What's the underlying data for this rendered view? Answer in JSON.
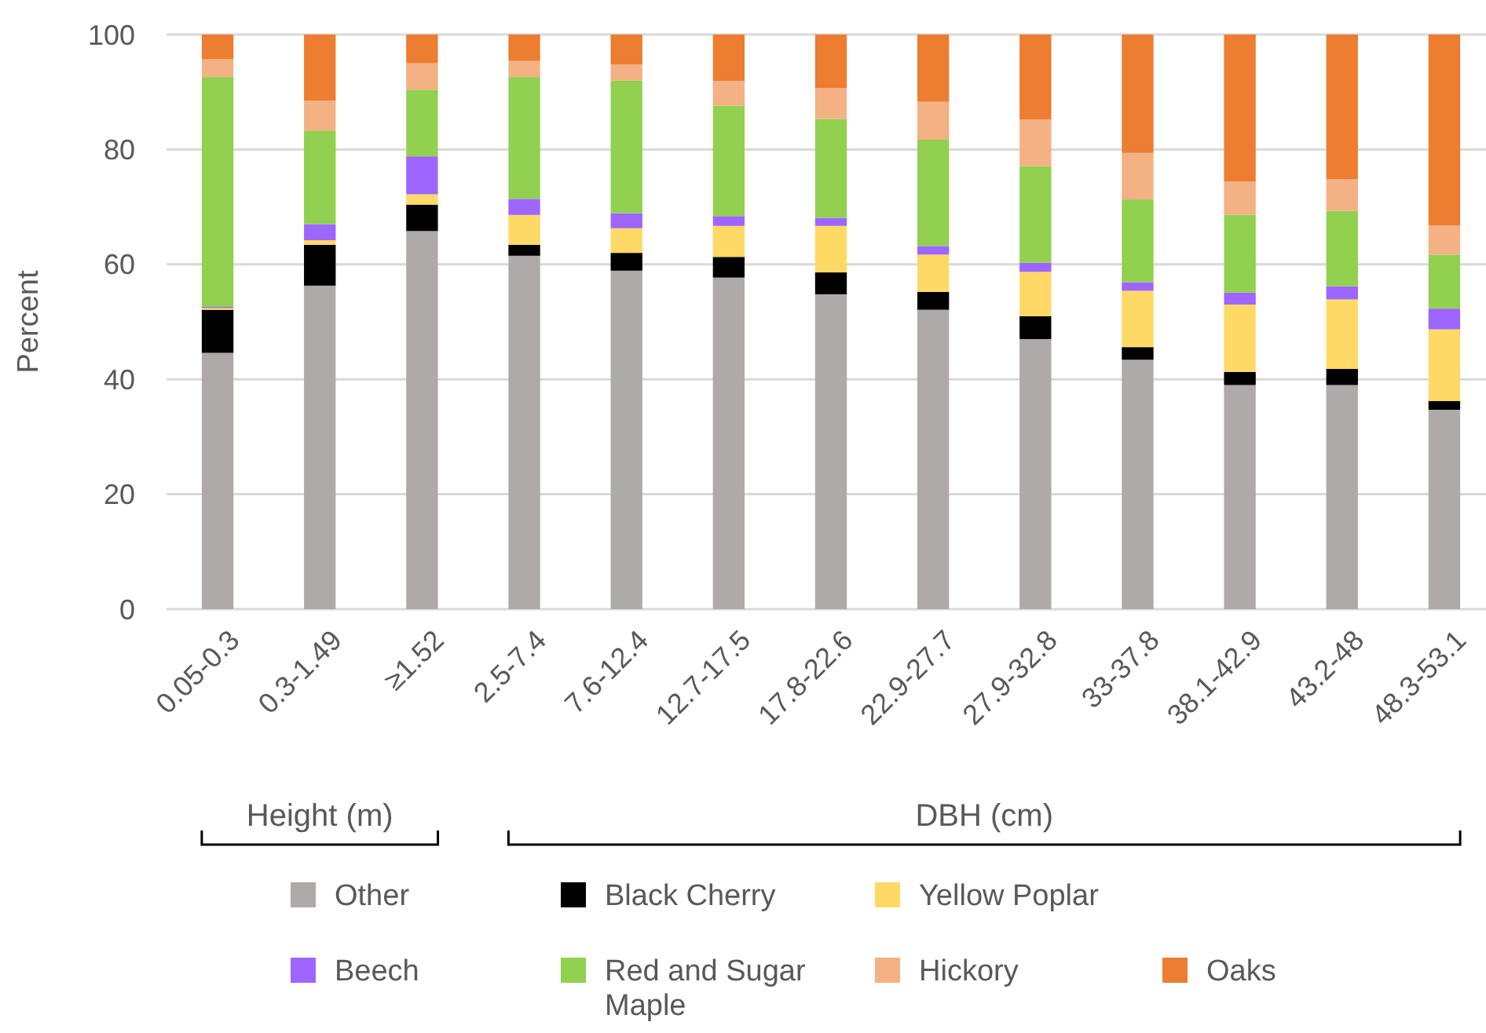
{
  "chart_data": {
    "type": "bar",
    "stacked": true,
    "ylabel": "Percent",
    "ylim": [
      0,
      100
    ],
    "yticks": [
      0,
      20,
      40,
      60,
      80,
      100
    ],
    "grid": "y",
    "legend": "bottom",
    "categories": [
      "0.05-0.3",
      "0.3-1.49",
      "≥1.52",
      "2.5-7.4",
      "7.6-12.4",
      "12.7-17.5",
      "17.8-22.6",
      "22.9-27.7",
      "27.9-32.8",
      "33-37.8",
      "38.1-42.9",
      "43.2-48",
      "48.3-53.1"
    ],
    "annotations": [
      "Height (m)",
      "DBH (cm)"
    ],
    "series": [
      {
        "name": "Other",
        "color": "#aeaaaa",
        "values": [
          44.6,
          56.3,
          65.8,
          61.5,
          58.9,
          57.7,
          54.8,
          52.1,
          47.0,
          43.4,
          39.0,
          39.0,
          34.7
        ]
      },
      {
        "name": "Black Cherry",
        "color": "#000000",
        "values": [
          7.5,
          7.1,
          4.6,
          1.9,
          3.1,
          3.6,
          3.8,
          3.1,
          4.0,
          2.2,
          2.3,
          2.8,
          1.5
        ]
      },
      {
        "name": "Yellow Poplar",
        "color": "#ffd966",
        "values": [
          0.3,
          0.8,
          1.8,
          5.2,
          4.3,
          5.4,
          8.1,
          6.5,
          7.7,
          9.8,
          11.7,
          12.1,
          12.5
        ]
      },
      {
        "name": "Beech",
        "color": "#9e65ff",
        "values": [
          0.2,
          2.8,
          6.6,
          2.8,
          2.6,
          1.7,
          1.4,
          1.5,
          1.6,
          1.5,
          2.1,
          2.3,
          3.6
        ]
      },
      {
        "name": "Red and Sugar Maple",
        "color": "#92d050",
        "values": [
          40.0,
          16.2,
          11.6,
          21.2,
          23.1,
          19.2,
          17.2,
          18.5,
          16.8,
          14.4,
          13.5,
          13.1,
          9.4
        ]
      },
      {
        "name": "Hickory",
        "color": "#f4b183",
        "values": [
          3.1,
          5.3,
          4.6,
          2.8,
          2.8,
          4.3,
          5.4,
          6.6,
          8.1,
          8.1,
          5.8,
          5.5,
          5.1
        ]
      },
      {
        "name": "Oaks",
        "color": "#ed7d31",
        "values": [
          4.3,
          11.5,
          5.0,
          4.6,
          5.2,
          8.1,
          9.3,
          11.7,
          14.8,
          20.6,
          25.6,
          25.2,
          33.2
        ]
      }
    ]
  }
}
